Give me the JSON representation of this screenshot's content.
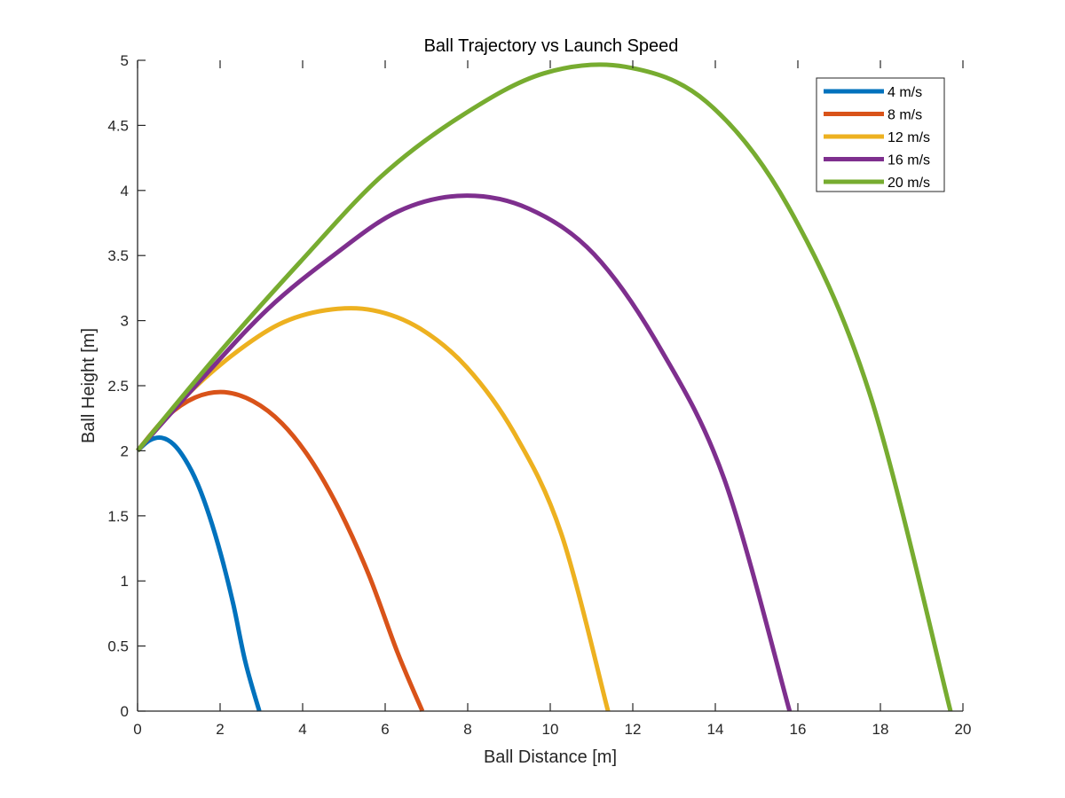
{
  "chart_data": {
    "type": "line",
    "title": "Ball Trajectory vs Launch Speed",
    "xlabel": "Ball Distance [m]",
    "ylabel": "Ball Height [m]",
    "xlim": [
      0,
      20
    ],
    "ylim": [
      0,
      5
    ],
    "xticks": [
      "0",
      "2",
      "4",
      "6",
      "8",
      "10",
      "12",
      "14",
      "16",
      "18",
      "20"
    ],
    "yticks": [
      "0",
      "0.5",
      "1",
      "1.5",
      "2",
      "2.5",
      "3",
      "3.5",
      "4",
      "4.5",
      "5"
    ],
    "grid": false,
    "legend_position": "top-right",
    "series": [
      {
        "name": "4 m/s",
        "color": "#0072BD",
        "x": [
          0,
          0.29,
          0.58,
          0.87,
          1.16,
          1.45,
          1.74,
          2.03,
          2.32,
          2.61,
          2.95
        ],
        "y": [
          2.0,
          2.08,
          2.1,
          2.05,
          1.93,
          1.75,
          1.5,
          1.19,
          0.82,
          0.38,
          0.0
        ]
      },
      {
        "name": "8 m/s",
        "color": "#D95319",
        "x": [
          0,
          0.7,
          1.4,
          2.1,
          2.8,
          3.5,
          4.2,
          4.9,
          5.6,
          6.3,
          6.9
        ],
        "y": [
          2.0,
          2.26,
          2.41,
          2.45,
          2.38,
          2.21,
          1.93,
          1.54,
          1.05,
          0.45,
          0.0
        ]
      },
      {
        "name": "12 m/s",
        "color": "#EDB120",
        "x": [
          0,
          1.14,
          2.28,
          3.42,
          4.56,
          5.7,
          6.84,
          7.98,
          9.12,
          10.26,
          11.4
        ],
        "y": [
          2.0,
          2.41,
          2.73,
          2.97,
          3.08,
          3.08,
          2.94,
          2.64,
          2.14,
          1.37,
          0.0
        ]
      },
      {
        "name": "16 m/s",
        "color": "#7E2F8E",
        "x": [
          0,
          1.58,
          3.16,
          4.74,
          6.32,
          7.9,
          9.48,
          11.06,
          12.64,
          14.22,
          15.8
        ],
        "y": [
          2.0,
          2.56,
          3.09,
          3.5,
          3.84,
          3.96,
          3.86,
          3.51,
          2.8,
          1.78,
          0.0
        ]
      },
      {
        "name": "20 m/s",
        "color": "#77AC30",
        "x": [
          0,
          1.97,
          3.94,
          5.91,
          7.88,
          9.85,
          11.82,
          13.79,
          15.76,
          17.73,
          19.7
        ],
        "y": [
          2.0,
          2.75,
          3.45,
          4.11,
          4.58,
          4.9,
          4.95,
          4.68,
          3.88,
          2.45,
          0.0
        ]
      }
    ]
  }
}
